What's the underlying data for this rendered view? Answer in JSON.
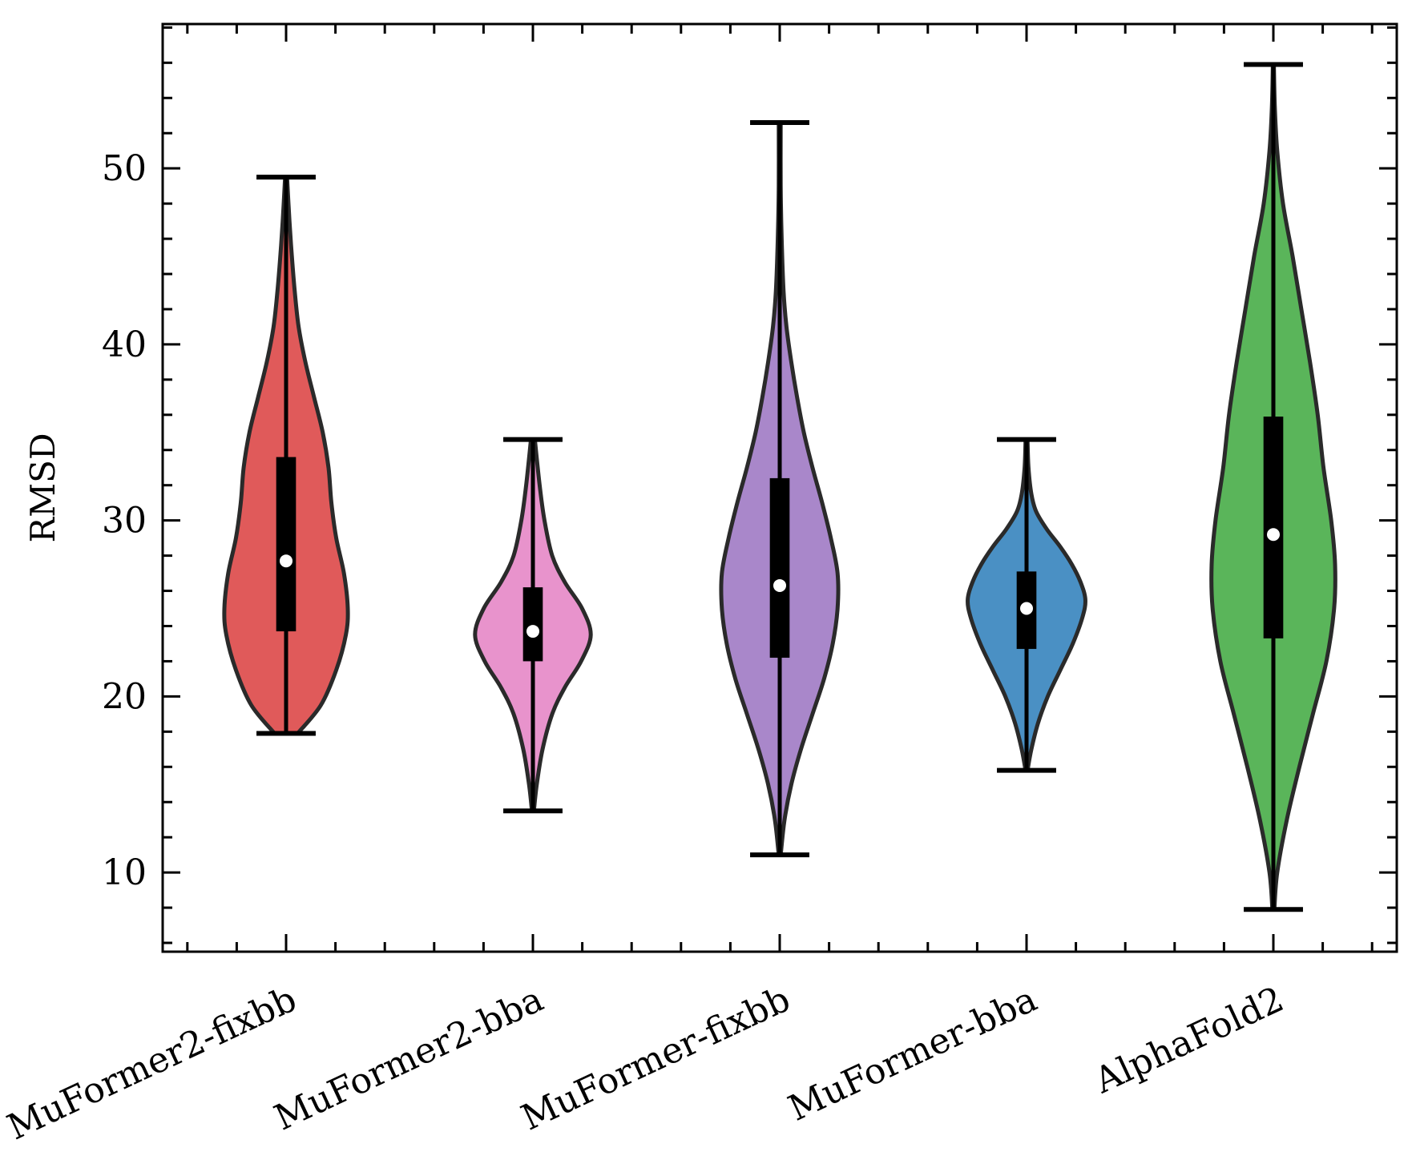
{
  "chart_data": {
    "type": "violin",
    "title": "",
    "xlabel": "",
    "ylabel": "RMSD",
    "ylim": [
      5.5,
      58.2
    ],
    "y_ticks_major": [
      10,
      20,
      30,
      40,
      50
    ],
    "y_minor_step": 2,
    "x_minor_step": 0.2,
    "grid": false,
    "tick_direction": "in",
    "categories": [
      "MuFormer2-fixbb",
      "MuFormer2-bba",
      "MuFormer-fixbb",
      "MuFormer-bba",
      "AlphaFold2"
    ],
    "series": [
      {
        "color": "#e05a5a",
        "min": 17.9,
        "max": 49.5,
        "q1": 23.7,
        "q3": 33.6,
        "median": 27.7,
        "density": [
          [
            17.9,
            0.12
          ],
          [
            19.5,
            0.36
          ],
          [
            21.5,
            0.52
          ],
          [
            23.5,
            0.62
          ],
          [
            25.0,
            0.64
          ],
          [
            27.0,
            0.6
          ],
          [
            29.0,
            0.52
          ],
          [
            31.0,
            0.47
          ],
          [
            33.0,
            0.44
          ],
          [
            35.0,
            0.38
          ],
          [
            37.0,
            0.29
          ],
          [
            39.0,
            0.2
          ],
          [
            41.0,
            0.13
          ],
          [
            43.0,
            0.09
          ],
          [
            45.0,
            0.06
          ],
          [
            47.0,
            0.035
          ],
          [
            49.5,
            0.01
          ]
        ]
      },
      {
        "color": "#e893cc",
        "min": 13.5,
        "max": 34.6,
        "q1": 22.0,
        "q3": 26.2,
        "median": 23.7,
        "density": [
          [
            13.5,
            0.01
          ],
          [
            15.0,
            0.04
          ],
          [
            17.0,
            0.1
          ],
          [
            19.0,
            0.2
          ],
          [
            20.5,
            0.33
          ],
          [
            22.0,
            0.5
          ],
          [
            23.5,
            0.6
          ],
          [
            25.0,
            0.51
          ],
          [
            26.5,
            0.33
          ],
          [
            28.0,
            0.2
          ],
          [
            30.0,
            0.12
          ],
          [
            32.0,
            0.07
          ],
          [
            34.6,
            0.02
          ]
        ]
      },
      {
        "color": "#a987ca",
        "min": 11.0,
        "max": 52.6,
        "q1": 22.2,
        "q3": 32.4,
        "median": 26.3,
        "density": [
          [
            11.0,
            0.01
          ],
          [
            13.0,
            0.05
          ],
          [
            15.0,
            0.12
          ],
          [
            17.0,
            0.22
          ],
          [
            19.0,
            0.34
          ],
          [
            21.0,
            0.46
          ],
          [
            23.0,
            0.55
          ],
          [
            25.0,
            0.6
          ],
          [
            27.0,
            0.6
          ],
          [
            29.0,
            0.53
          ],
          [
            31.0,
            0.44
          ],
          [
            33.0,
            0.34
          ],
          [
            35.0,
            0.25
          ],
          [
            37.0,
            0.18
          ],
          [
            39.0,
            0.12
          ],
          [
            41.0,
            0.07
          ],
          [
            43.0,
            0.04
          ],
          [
            46.0,
            0.02
          ],
          [
            49.0,
            0.01
          ],
          [
            52.6,
            0.01
          ]
        ]
      },
      {
        "color": "#4a90c4",
        "min": 15.8,
        "max": 34.6,
        "q1": 22.7,
        "q3": 27.1,
        "median": 25.0,
        "density": [
          [
            15.8,
            0.01
          ],
          [
            17.0,
            0.05
          ],
          [
            18.5,
            0.12
          ],
          [
            20.0,
            0.22
          ],
          [
            21.5,
            0.35
          ],
          [
            23.0,
            0.48
          ],
          [
            24.5,
            0.58
          ],
          [
            25.5,
            0.61
          ],
          [
            26.5,
            0.56
          ],
          [
            27.5,
            0.47
          ],
          [
            28.5,
            0.35
          ],
          [
            29.5,
            0.21
          ],
          [
            30.5,
            0.1
          ],
          [
            31.5,
            0.05
          ],
          [
            33.0,
            0.02
          ],
          [
            34.6,
            0.01
          ]
        ]
      },
      {
        "color": "#5ab55a",
        "min": 7.9,
        "max": 55.9,
        "q1": 23.3,
        "q3": 35.9,
        "median": 29.2,
        "density": [
          [
            7.9,
            0.01
          ],
          [
            10.0,
            0.04
          ],
          [
            13.0,
            0.14
          ],
          [
            16.0,
            0.27
          ],
          [
            19.0,
            0.41
          ],
          [
            22.0,
            0.55
          ],
          [
            25.0,
            0.63
          ],
          [
            27.5,
            0.64
          ],
          [
            30.0,
            0.6
          ],
          [
            33.0,
            0.52
          ],
          [
            36.0,
            0.46
          ],
          [
            39.0,
            0.38
          ],
          [
            42.0,
            0.29
          ],
          [
            45.0,
            0.2
          ],
          [
            48.0,
            0.1
          ],
          [
            51.0,
            0.04
          ],
          [
            53.5,
            0.015
          ],
          [
            55.9,
            0.005
          ]
        ]
      }
    ]
  }
}
